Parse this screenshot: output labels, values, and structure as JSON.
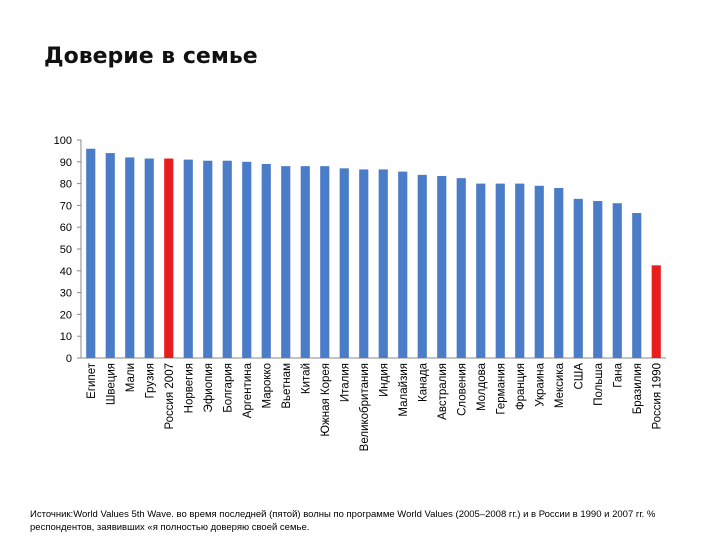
{
  "title": "Доверие в семье",
  "source_note": "Источник:World Values 5th Wave. во время последней (пятой) волны по программе World Values (2005–2008 гг.) и в России в 1990 и 2007 гг. % респондентов, заявивших «я полностью доверяю своей семье.",
  "colors": {
    "normal": "#4a7cc7",
    "highlight": "#e81d1d",
    "axis": "#888888"
  },
  "chart_data": {
    "type": "bar",
    "title": "Доверие в семье",
    "xlabel": "",
    "ylabel": "",
    "ylim": [
      0,
      100
    ],
    "yticks": [
      0,
      10,
      20,
      30,
      40,
      50,
      60,
      70,
      80,
      90,
      100
    ],
    "grid": false,
    "legend": "none",
    "categories": [
      "Египет",
      "Швеция",
      "Мали",
      "Грузия",
      "Россия 2007",
      "Норвегия",
      "Эфиопия",
      "Болгария",
      "Аргентина",
      "Марокко",
      "Вьетнам",
      "Китай",
      "Южная Корея",
      "Италия",
      "Великобритания",
      "Индия",
      "Малайзия",
      "Канада",
      "Австралия",
      "Словения",
      "Молдова",
      "Германия",
      "Франция",
      "Украина",
      "Мексика",
      "США",
      "Польша",
      "Гана",
      "Бразилия",
      "Россия 1990"
    ],
    "values": [
      96,
      94,
      92,
      91.5,
      91.5,
      91,
      90.5,
      90.5,
      90,
      89,
      88,
      88,
      88,
      87,
      86.5,
      86.5,
      85.5,
      84,
      83.5,
      82.5,
      80,
      80,
      80,
      79,
      78,
      73,
      72,
      71,
      66.5,
      42.5
    ],
    "highlighted": [
      "Россия 2007",
      "Россия 1990"
    ]
  }
}
